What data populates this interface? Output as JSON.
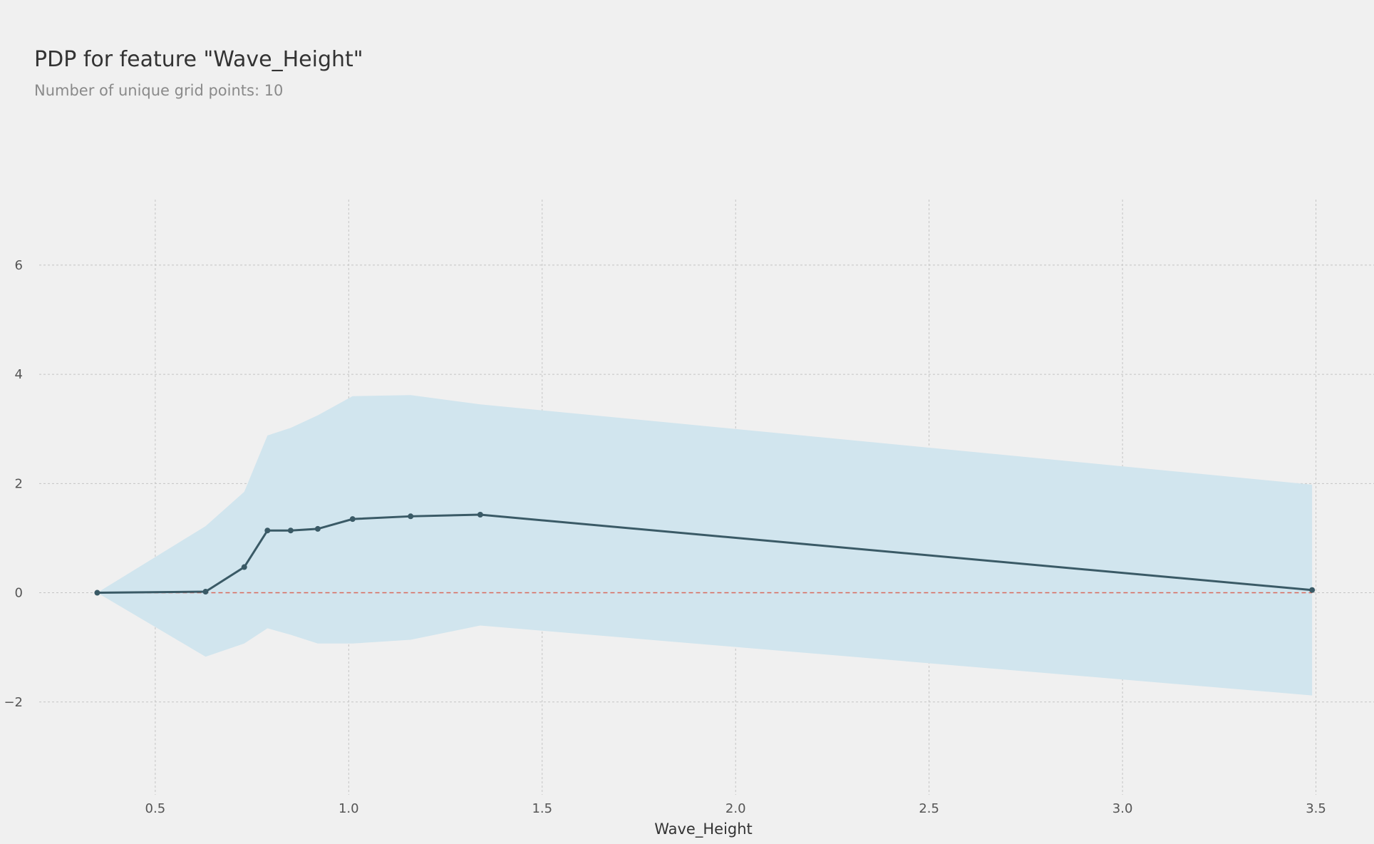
{
  "chart_data": {
    "type": "line",
    "title": "PDP for feature \"Wave_Height\"",
    "subtitle": "Number of unique grid points: 10",
    "xlabel": "Wave_Height",
    "ylabel": "",
    "xlim": [
      0.2,
      3.65
    ],
    "ylim": [
      -3.7,
      7.2
    ],
    "xticks": [
      0.5,
      1.0,
      1.5,
      2.0,
      2.5,
      3.0,
      3.5
    ],
    "xtick_labels": [
      "0.5",
      "1.0",
      "1.5",
      "2.0",
      "2.5",
      "3.0",
      "3.5"
    ],
    "yticks": [
      -2,
      0,
      2,
      4,
      6
    ],
    "ytick_labels": [
      "−2",
      "0",
      "2",
      "4",
      "6"
    ],
    "grid": true,
    "baseline": 0,
    "series": [
      {
        "x": [
          0.35,
          0.63,
          0.73,
          0.79,
          0.85,
          0.92,
          1.01,
          1.16,
          1.34,
          3.49
        ],
        "values": [
          0.0,
          0.02,
          0.47,
          1.14,
          1.14,
          1.17,
          1.35,
          1.4,
          1.43,
          0.05
        ],
        "upper": [
          0.0,
          1.22,
          1.85,
          2.88,
          3.02,
          3.25,
          3.6,
          3.62,
          3.45,
          1.98
        ],
        "lower": [
          0.0,
          -1.17,
          -0.93,
          -0.65,
          -0.77,
          -0.93,
          -0.93,
          -0.86,
          -0.6,
          -1.88
        ]
      }
    ],
    "colors": {
      "line": "#3a5a66",
      "band": "#d1e5ee",
      "baseline": "#d9685a",
      "grid": "#c4c4c4"
    }
  }
}
